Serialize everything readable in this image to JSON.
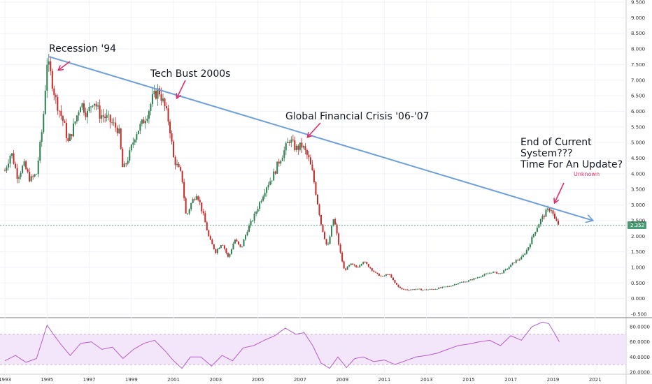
{
  "chart_data": {
    "type": "candlestick",
    "y_axis": {
      "range": [
        -0.5,
        9.5
      ],
      "ticks": [
        "9.500",
        "9.000",
        "8.500",
        "8.000",
        "7.500",
        "7.000",
        "6.500",
        "6.000",
        "5.500",
        "5.000",
        "4.500",
        "4.000",
        "3.500",
        "3.000",
        "2.500",
        "2.000",
        "1.500",
        "1.000",
        "0.500",
        "0.000",
        "-0.500"
      ]
    },
    "x_axis": {
      "range": [
        1993.0,
        2022.8
      ],
      "ticks": [
        "1993",
        "1995",
        "1997",
        "1999",
        "2001",
        "2003",
        "2005",
        "2007",
        "2009",
        "2011",
        "2013",
        "2015",
        "2017",
        "2019",
        "2021"
      ]
    },
    "last_price": {
      "label": "2.352",
      "value": 2.352,
      "color": "#4a9a74"
    },
    "trendline": {
      "from": [
        1995.1,
        7.75
      ],
      "to": [
        2020.9,
        2.5
      ],
      "color": "#6f9fd8"
    },
    "price_path": [
      [
        1993.0,
        4.1
      ],
      [
        1993.3,
        4.7
      ],
      [
        1993.6,
        3.9
      ],
      [
        1993.9,
        4.3
      ],
      [
        1994.2,
        3.8
      ],
      [
        1994.5,
        4.0
      ],
      [
        1994.8,
        5.6
      ],
      [
        1995.0,
        7.6
      ],
      [
        1995.2,
        7.1
      ],
      [
        1995.4,
        6.4
      ],
      [
        1995.6,
        6.0
      ],
      [
        1995.8,
        5.6
      ],
      [
        1996.0,
        5.0
      ],
      [
        1996.3,
        5.6
      ],
      [
        1996.6,
        6.3
      ],
      [
        1996.9,
        5.9
      ],
      [
        1997.2,
        6.4
      ],
      [
        1997.5,
        5.9
      ],
      [
        1997.8,
        5.8
      ],
      [
        1998.1,
        5.6
      ],
      [
        1998.4,
        5.4
      ],
      [
        1998.6,
        4.1
      ],
      [
        1998.9,
        4.6
      ],
      [
        1999.2,
        5.3
      ],
      [
        1999.5,
        5.6
      ],
      [
        1999.8,
        6.0
      ],
      [
        2000.0,
        6.4
      ],
      [
        2000.3,
        6.7
      ],
      [
        2000.6,
        6.1
      ],
      [
        2000.8,
        5.6
      ],
      [
        2001.0,
        4.5
      ],
      [
        2001.2,
        4.2
      ],
      [
        2001.4,
        3.9
      ],
      [
        2001.6,
        2.6
      ],
      [
        2001.8,
        3.0
      ],
      [
        2002.1,
        3.4
      ],
      [
        2002.4,
        2.7
      ],
      [
        2002.7,
        1.9
      ],
      [
        2003.0,
        1.5
      ],
      [
        2003.3,
        1.8
      ],
      [
        2003.6,
        1.3
      ],
      [
        2003.9,
        1.9
      ],
      [
        2004.2,
        1.6
      ],
      [
        2004.5,
        2.2
      ],
      [
        2004.8,
        2.6
      ],
      [
        2005.1,
        3.1
      ],
      [
        2005.4,
        3.6
      ],
      [
        2005.7,
        3.9
      ],
      [
        2006.0,
        4.4
      ],
      [
        2006.3,
        4.8
      ],
      [
        2006.5,
        5.1
      ],
      [
        2006.8,
        4.8
      ],
      [
        2007.1,
        4.9
      ],
      [
        2007.4,
        4.5
      ],
      [
        2007.6,
        4.0
      ],
      [
        2007.8,
        3.2
      ],
      [
        2008.0,
        2.4
      ],
      [
        2008.3,
        1.6
      ],
      [
        2008.6,
        2.6
      ],
      [
        2008.9,
        1.5
      ],
      [
        2009.1,
        0.9
      ],
      [
        2009.4,
        1.1
      ],
      [
        2009.7,
        1.0
      ],
      [
        2010.0,
        1.2
      ],
      [
        2010.3,
        1.0
      ],
      [
        2010.6,
        0.8
      ],
      [
        2010.9,
        0.7
      ],
      [
        2011.2,
        0.8
      ],
      [
        2011.5,
        0.5
      ],
      [
        2011.8,
        0.3
      ],
      [
        2012.1,
        0.28
      ],
      [
        2012.5,
        0.3
      ],
      [
        2012.9,
        0.28
      ],
      [
        2013.3,
        0.3
      ],
      [
        2013.7,
        0.35
      ],
      [
        2014.1,
        0.4
      ],
      [
        2014.5,
        0.5
      ],
      [
        2014.9,
        0.55
      ],
      [
        2015.3,
        0.65
      ],
      [
        2015.7,
        0.75
      ],
      [
        2016.1,
        0.85
      ],
      [
        2016.5,
        0.8
      ],
      [
        2016.9,
        1.0
      ],
      [
        2017.2,
        1.2
      ],
      [
        2017.5,
        1.3
      ],
      [
        2017.8,
        1.6
      ],
      [
        2018.1,
        2.1
      ],
      [
        2018.4,
        2.5
      ],
      [
        2018.7,
        2.8
      ],
      [
        2018.9,
        2.9
      ],
      [
        2019.1,
        2.5
      ],
      [
        2019.3,
        2.35
      ]
    ],
    "rsi": {
      "range": [
        20,
        90
      ],
      "ticks": [
        "80.0000",
        "60.0000",
        "40.0000",
        "20.0000"
      ],
      "bands": [
        70,
        30
      ],
      "color": "#b65dce",
      "path": [
        [
          1993.0,
          35
        ],
        [
          1993.5,
          42
        ],
        [
          1994.0,
          33
        ],
        [
          1994.5,
          38
        ],
        [
          1995.0,
          82
        ],
        [
          1995.3,
          70
        ],
        [
          1995.7,
          55
        ],
        [
          1996.1,
          42
        ],
        [
          1996.6,
          58
        ],
        [
          1997.1,
          60
        ],
        [
          1997.6,
          50
        ],
        [
          1998.1,
          53
        ],
        [
          1998.6,
          38
        ],
        [
          1999.1,
          50
        ],
        [
          1999.6,
          58
        ],
        [
          2000.1,
          62
        ],
        [
          2000.6,
          48
        ],
        [
          2001.0,
          35
        ],
        [
          2001.4,
          25
        ],
        [
          2001.8,
          40
        ],
        [
          2002.3,
          40
        ],
        [
          2002.8,
          28
        ],
        [
          2003.3,
          42
        ],
        [
          2003.8,
          35
        ],
        [
          2004.3,
          52
        ],
        [
          2004.8,
          55
        ],
        [
          2005.3,
          62
        ],
        [
          2005.8,
          68
        ],
        [
          2006.3,
          78
        ],
        [
          2006.8,
          70
        ],
        [
          2007.2,
          72
        ],
        [
          2007.6,
          55
        ],
        [
          2008.0,
          32
        ],
        [
          2008.4,
          25
        ],
        [
          2008.8,
          40
        ],
        [
          2009.2,
          26
        ],
        [
          2009.6,
          38
        ],
        [
          2010.0,
          40
        ],
        [
          2010.5,
          34
        ],
        [
          2011.0,
          36
        ],
        [
          2011.5,
          30
        ],
        [
          2012.0,
          35
        ],
        [
          2012.5,
          40
        ],
        [
          2013.0,
          42
        ],
        [
          2013.5,
          45
        ],
        [
          2014.0,
          50
        ],
        [
          2014.5,
          55
        ],
        [
          2015.0,
          57
        ],
        [
          2015.5,
          60
        ],
        [
          2016.0,
          62
        ],
        [
          2016.5,
          55
        ],
        [
          2017.0,
          68
        ],
        [
          2017.5,
          62
        ],
        [
          2018.0,
          80
        ],
        [
          2018.5,
          86
        ],
        [
          2018.8,
          84
        ],
        [
          2019.1,
          70
        ],
        [
          2019.3,
          60
        ]
      ]
    }
  },
  "annotations": [
    {
      "text": "Recession '94"
    },
    {
      "text": "Tech Bust 2000s"
    },
    {
      "text": "Global Financial Crisis '06-'07"
    },
    {
      "lines": [
        "End of Current",
        "System???",
        "Time For An Update?"
      ]
    },
    {
      "text": "Unknown",
      "color": "#e0306a"
    }
  ],
  "arrow_color": "#e0306a"
}
